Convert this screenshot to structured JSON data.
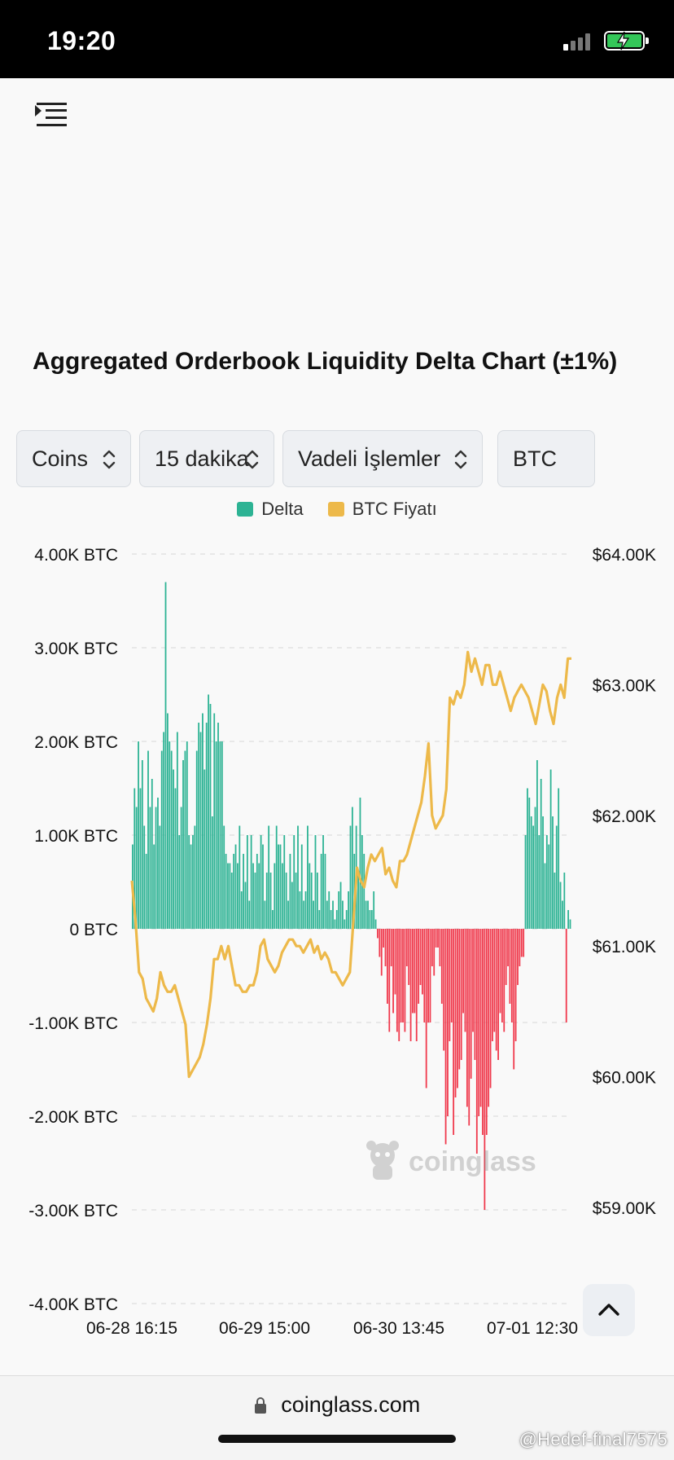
{
  "status_bar": {
    "time": "19:20"
  },
  "header": {
    "menu_icon": "menu-indent-icon"
  },
  "title": "Aggregated Orderbook Liquidity Delta Chart (±1%)",
  "controls": [
    {
      "label": "Coins"
    },
    {
      "label": "15 dakika"
    },
    {
      "label": "Vadeli İşlemler"
    },
    {
      "label": "BTC"
    }
  ],
  "legend": [
    {
      "label": "Delta",
      "color": "#2db394"
    },
    {
      "label": "BTC Fiyatı",
      "color": "#edb94a"
    }
  ],
  "chart_data": {
    "type": "bar",
    "title": "",
    "y_left": {
      "ticks": [
        "4.00K BTC",
        "3.00K BTC",
        "2.00K BTC",
        "1.00K BTC",
        "0 BTC",
        "-1.00K BTC",
        "-2.00K BTC",
        "-3.00K BTC",
        "-4.00K BTC"
      ],
      "range": [
        -4000,
        4000
      ]
    },
    "y_right": {
      "ticks": [
        "$64.00K",
        "$63.00K",
        "$62.00K",
        "$61.00K",
        "$60.00K",
        "$59.00K"
      ],
      "range": [
        59000,
        64000
      ]
    },
    "x_ticks": [
      "06-28 16:15",
      "06-29 15:00",
      "06-30 13:45",
      "07-01 12:30"
    ],
    "grid": "horizontal dashed",
    "colors": {
      "positive": "#2db394",
      "negative": "#f0394c",
      "price": "#edb94a"
    },
    "series": [
      {
        "name": "Delta",
        "type": "bar",
        "values": [
          900,
          1500,
          1300,
          2000,
          1500,
          1800,
          1100,
          800,
          1900,
          1300,
          1600,
          900,
          1300,
          1400,
          1100,
          1900,
          2100,
          3700,
          2300,
          2000,
          1900,
          1700,
          1500,
          2100,
          1000,
          1300,
          1800,
          1900,
          2000,
          1000,
          900,
          1000,
          1100,
          1900,
          2200,
          2100,
          2300,
          1700,
          2200,
          2500,
          2400,
          1200,
          2300,
          2000,
          2200,
          2000,
          2000,
          1100,
          800,
          700,
          700,
          600,
          800,
          900,
          700,
          1100,
          400,
          800,
          500,
          1000,
          300,
          1000,
          700,
          600,
          800,
          700,
          1000,
          900,
          300,
          600,
          1100,
          600,
          200,
          700,
          1100,
          900,
          900,
          700,
          1000,
          600,
          300,
          800,
          500,
          1000,
          600,
          1100,
          400,
          900,
          300,
          400,
          1100,
          700,
          600,
          300,
          1000,
          600,
          200,
          800,
          1000,
          800,
          300,
          400,
          200,
          300,
          100,
          200,
          400,
          500,
          300,
          100,
          200,
          400,
          1100,
          1300,
          800,
          1100,
          600,
          1400,
          1000,
          800,
          300,
          300,
          200,
          200,
          400,
          100,
          -100,
          -300,
          -500,
          -200,
          -400,
          -800,
          -1100,
          -400,
          -900,
          -700,
          -1100,
          -1200,
          -1000,
          -1000,
          -1100,
          -400,
          -600,
          -1200,
          -900,
          -900,
          -1200,
          -800,
          -600,
          -700,
          -1000,
          -1700,
          -1000,
          -1000,
          -400,
          -500,
          -200,
          -200,
          -400,
          -800,
          -1300,
          -2300,
          -2000,
          -1200,
          -1000,
          -2200,
          -1800,
          -1700,
          -1500,
          -1400,
          -900,
          -1100,
          -1900,
          -2100,
          -1600,
          -1100,
          -1400,
          -2400,
          -2000,
          -1900,
          -2200,
          -3000,
          -2200,
          -1900,
          -1700,
          -1200,
          -1100,
          -1300,
          -1400,
          -900,
          -1000,
          -1100,
          -600,
          -400,
          -800,
          -1000,
          -1500,
          -1200,
          -600,
          -400,
          -300,
          -300,
          1000,
          1500,
          1400,
          1200,
          1100,
          1300,
          1800,
          1000,
          1600,
          1200,
          700,
          1000,
          900,
          1700,
          1200,
          600,
          1100,
          1500,
          500,
          300,
          600,
          -1000,
          200,
          100
        ],
        "values_note": "approximate"
      },
      {
        "name": "BTC Fiyatı",
        "type": "line",
        "values": [
          61500,
          61200,
          60800,
          60750,
          60600,
          60550,
          60500,
          60600,
          60800,
          60700,
          60650,
          60650,
          60700,
          60600,
          60500,
          60400,
          60000,
          60050,
          60100,
          60150,
          60250,
          60400,
          60600,
          60900,
          60900,
          61000,
          60900,
          61000,
          60850,
          60700,
          60700,
          60650,
          60650,
          60700,
          60700,
          60800,
          61000,
          61050,
          60900,
          60850,
          60800,
          60850,
          60950,
          61000,
          61050,
          61050,
          61000,
          61000,
          60950,
          61000,
          61050,
          60950,
          61000,
          60900,
          60950,
          60900,
          60800,
          60800,
          60750,
          60700,
          60750,
          60800,
          61200,
          61600,
          61500,
          61450,
          61600,
          61700,
          61650,
          61700,
          61750,
          61550,
          61600,
          61500,
          61450,
          61650,
          61650,
          61700,
          61800,
          61900,
          62000,
          62100,
          62300,
          62550,
          62000,
          61900,
          61950,
          62000,
          62200,
          62900,
          62850,
          62950,
          62900,
          63000,
          63250,
          63100,
          63200,
          63100,
          63000,
          63150,
          63150,
          63000,
          63000,
          63100,
          63000,
          62900,
          62800,
          62900,
          62950,
          63000,
          62950,
          62900,
          62800,
          62700,
          62850,
          63000,
          62950,
          62800,
          62700,
          62900,
          63000,
          62900,
          63200,
          63200
        ],
        "values_note": "approximate"
      }
    ]
  },
  "watermark": {
    "brand": "coinglass",
    "icon": "coinglass-mascot-icon"
  },
  "scroll_top": {
    "icon": "chevron-up-icon"
  },
  "bottom_bar": {
    "url": "coinglass.com",
    "lock_icon": "lock-icon"
  },
  "credit": "@Hedef-final7575"
}
